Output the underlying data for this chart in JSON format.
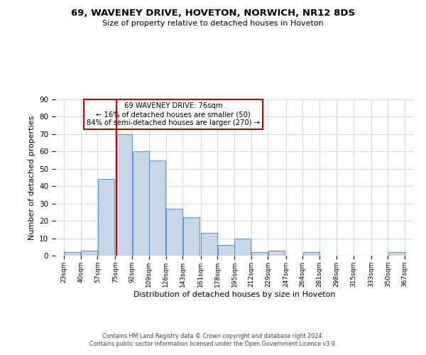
{
  "title": "69, WAVENEY DRIVE, HOVETON, NORWICH, NR12 8DS",
  "subtitle": "Size of property relative to detached houses in Hoveton",
  "xlabel": "Distribution of detached houses by size in Hoveton",
  "ylabel": "Number of detached properties",
  "bar_left_edges": [
    23,
    40,
    57,
    75,
    92,
    109,
    126,
    143,
    161,
    178,
    195,
    212,
    229,
    247,
    264,
    281,
    298,
    315,
    333,
    350
  ],
  "bar_heights": [
    2,
    3,
    44,
    70,
    60,
    55,
    27,
    22,
    13,
    6,
    10,
    2,
    3,
    0,
    2,
    0,
    0,
    0,
    0,
    2
  ],
  "bin_width": 17,
  "tick_labels": [
    "23sqm",
    "40sqm",
    "57sqm",
    "75sqm",
    "92sqm",
    "109sqm",
    "126sqm",
    "143sqm",
    "161sqm",
    "178sqm",
    "195sqm",
    "212sqm",
    "229sqm",
    "247sqm",
    "264sqm",
    "281sqm",
    "298sqm",
    "315sqm",
    "333sqm",
    "350sqm",
    "367sqm"
  ],
  "bar_color": "#c8d8e8",
  "bar_edge_color": "#5b9bd5",
  "vline_x": 76,
  "vline_color": "#cc0000",
  "annotation_title": "69 WAVENEY DRIVE: 76sqm",
  "annotation_line1": "← 16% of detached houses are smaller (50)",
  "annotation_line2": "84% of semi-detached houses are larger (270) →",
  "annotation_box_color": "#ffffff",
  "annotation_box_edge": "#cc0000",
  "ylim": [
    0,
    90
  ],
  "yticks": [
    0,
    10,
    20,
    30,
    40,
    50,
    60,
    70,
    80,
    90
  ],
  "footer1": "Contains HM Land Registry data © Crown copyright and database right 2024.",
  "footer2": "Contains public sector information licensed under the Open Government Licence v3.0.",
  "background_color": "#ffffff",
  "grid_color": "#d0d8e8"
}
